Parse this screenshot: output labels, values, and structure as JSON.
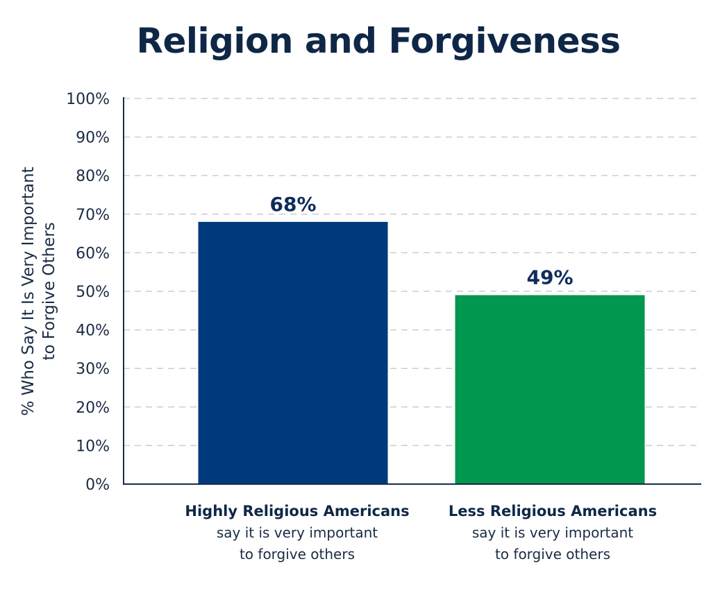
{
  "chart_data": {
    "type": "bar",
    "title": "Religion and Forgiveness",
    "ylabel_lines": [
      "% Who Say It Is Very Important",
      "to Forgive Others"
    ],
    "xlabel": "",
    "ylim": [
      0,
      100
    ],
    "yticks": [
      "0%",
      "10%",
      "20%",
      "30%",
      "40%",
      "50%",
      "60%",
      "70%",
      "80%",
      "90%",
      "100%"
    ],
    "grid": true,
    "categories": [
      {
        "title": "Highly Religious Americans",
        "subtitle_lines": [
          "say it is very important",
          "to forgive others"
        ]
      },
      {
        "title": "Less Religious Americans",
        "subtitle_lines": [
          "say it is very important",
          "to forgive others"
        ]
      }
    ],
    "values": [
      68,
      49
    ],
    "data_labels": [
      "68%",
      "49%"
    ],
    "colors": [
      "#003a7b",
      "#02974e"
    ]
  }
}
